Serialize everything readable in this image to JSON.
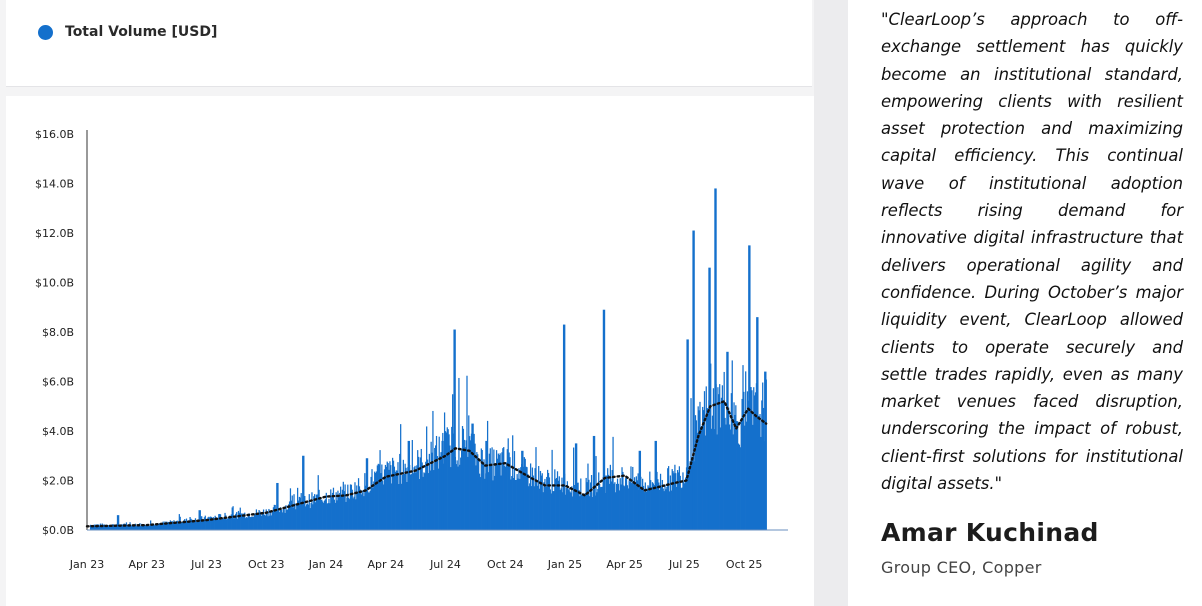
{
  "legend": {
    "label": "Total Volume [USD]",
    "color": "#1470cc"
  },
  "quote": {
    "text": "\"ClearLoop’s approach to off-exchange settlement has quickly become an institutional standard, empowering clients with resilient asset protection and maximizing capital efficiency. This continual wave of institutional adoption reflects rising demand for innovative digital infrastructure that delivers operational agility and confidence. During October’s major liquidity event, ClearLoop allowed clients to operate securely and settle trades rapidly, even as many market venues faced disruption, underscoring the impact of robust, client-first solutions for institutional digital assets.\"",
    "author": "Amar Kuchinad",
    "role": "Group CEO, Copper"
  },
  "chart_data": {
    "type": "bar",
    "title": "",
    "xlabel": "",
    "ylabel": "",
    "series": [
      {
        "name": "Total Volume [USD]",
        "kind": "bar",
        "color": "#1470cc"
      },
      {
        "kind": "line",
        "style": "dotted",
        "color": "#111111"
      }
    ],
    "ylim": [
      0,
      16
    ],
    "y_ticks": [
      0,
      2,
      4,
      6,
      8,
      10,
      12,
      14,
      16
    ],
    "y_tick_labels": [
      "$0.0B",
      "$2.0B",
      "$4.0B",
      "$6.0B",
      "$8.0B",
      "$10.0B",
      "$12.0B",
      "$14.0B",
      "$16.0B"
    ],
    "x_tick_labels": [
      "Jan 23",
      "Apr 23",
      "Jul 23",
      "Oct 23",
      "Jan 24",
      "Apr 24",
      "Jul 24",
      "Oct 24",
      "Jan 25",
      "Apr 25",
      "Jul 25",
      "Oct 25"
    ],
    "x_tick_months": [
      0,
      3,
      6,
      9,
      12,
      15,
      18,
      21,
      24,
      27,
      30,
      33
    ],
    "x_range_months": [
      0,
      35
    ],
    "volume_baseline_B": [
      [
        0,
        0.2
      ],
      [
        3,
        0.2
      ],
      [
        6,
        0.45
      ],
      [
        9,
        0.7
      ],
      [
        12,
        1.3
      ],
      [
        13,
        1.4
      ],
      [
        15,
        2.2
      ],
      [
        17,
        2.6
      ],
      [
        18,
        3.2
      ],
      [
        19,
        3.3
      ],
      [
        20,
        2.5
      ],
      [
        21,
        2.6
      ],
      [
        22,
        2.2
      ],
      [
        23,
        1.9
      ],
      [
        24,
        1.8
      ],
      [
        25,
        1.6
      ],
      [
        26,
        1.9
      ],
      [
        27,
        2.0
      ],
      [
        28,
        1.8
      ],
      [
        29,
        1.9
      ],
      [
        30,
        2.2
      ],
      [
        30.5,
        3.5
      ],
      [
        31,
        4.5
      ],
      [
        32,
        5.0
      ],
      [
        32.5,
        4.2
      ],
      [
        33,
        4.2
      ],
      [
        33.5,
        4.6
      ],
      [
        34,
        4.6
      ]
    ],
    "volume_spikes_B": [
      [
        1.5,
        0.6
      ],
      [
        5.6,
        0.8
      ],
      [
        9.5,
        1.9
      ],
      [
        10.8,
        3.0
      ],
      [
        14.0,
        2.9
      ],
      [
        16.1,
        3.6
      ],
      [
        17.8,
        3.6
      ],
      [
        18.4,
        8.1
      ],
      [
        19.3,
        4.3
      ],
      [
        20.0,
        3.6
      ],
      [
        21.8,
        3.2
      ],
      [
        23.9,
        8.3
      ],
      [
        24.5,
        3.5
      ],
      [
        25.4,
        3.8
      ],
      [
        25.9,
        8.9
      ],
      [
        27.7,
        3.2
      ],
      [
        28.5,
        3.6
      ],
      [
        30.1,
        7.7
      ],
      [
        30.4,
        12.1
      ],
      [
        31.2,
        10.6
      ],
      [
        31.5,
        13.8
      ],
      [
        32.1,
        7.2
      ],
      [
        33.2,
        11.5
      ],
      [
        33.6,
        8.6
      ],
      [
        34.0,
        6.4
      ]
    ],
    "moving_average_B": [
      [
        0,
        0.15
      ],
      [
        3,
        0.2
      ],
      [
        6,
        0.4
      ],
      [
        9,
        0.7
      ],
      [
        12,
        1.35
      ],
      [
        13,
        1.4
      ],
      [
        14,
        1.6
      ],
      [
        15,
        2.15
      ],
      [
        16.5,
        2.4
      ],
      [
        18,
        3.0
      ],
      [
        18.5,
        3.3
      ],
      [
        19.2,
        3.2
      ],
      [
        20,
        2.6
      ],
      [
        21,
        2.7
      ],
      [
        22.3,
        2.1
      ],
      [
        23,
        1.8
      ],
      [
        24,
        1.8
      ],
      [
        25,
        1.4
      ],
      [
        26,
        2.1
      ],
      [
        27,
        2.2
      ],
      [
        28,
        1.6
      ],
      [
        29.5,
        1.9
      ],
      [
        30.1,
        2.0
      ],
      [
        30.7,
        3.8
      ],
      [
        31.3,
        5.0
      ],
      [
        32,
        5.2
      ],
      [
        32.6,
        4.1
      ],
      [
        33.2,
        4.9
      ],
      [
        33.6,
        4.6
      ],
      [
        34.1,
        4.3
      ]
    ]
  }
}
